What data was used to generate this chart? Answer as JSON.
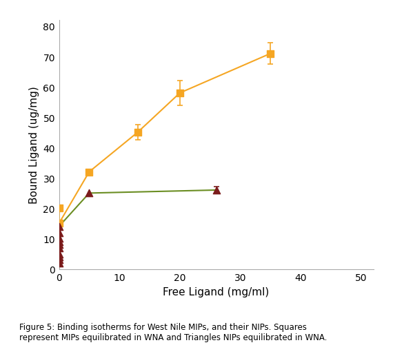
{
  "mip_x": [
    0,
    0,
    5,
    13,
    20,
    35
  ],
  "mip_y": [
    20,
    15,
    32,
    45,
    58,
    71
  ],
  "mip_yerr": [
    0,
    0,
    0,
    2.5,
    4,
    3.5
  ],
  "mip_color": "#F5A623",
  "mip_line_color": "#F5A623",
  "nip_x": [
    0,
    0,
    0,
    0,
    0,
    0,
    0,
    0,
    0,
    0,
    5,
    26
  ],
  "nip_y": [
    14,
    12,
    10,
    9,
    8,
    7,
    5,
    4,
    3,
    2,
    25,
    26
  ],
  "nip_yerr_last": 1.2,
  "nip_color": "#7B1C1C",
  "nip_line_color": "#6B8E23",
  "nip_line_x": [
    0,
    5,
    26
  ],
  "nip_line_y": [
    14,
    25,
    26
  ],
  "xlabel": "Free Ligand (mg/ml)",
  "ylabel": "Bound Ligand (ug/mg)",
  "xlim": [
    0,
    52
  ],
  "ylim": [
    0,
    82
  ],
  "xticks": [
    0,
    10,
    20,
    30,
    40,
    50
  ],
  "yticks": [
    0,
    10,
    20,
    30,
    40,
    50,
    60,
    70,
    80
  ],
  "figure_text": "Figure 5: Binding isotherms for West Nile MIPs, and their NIPs. Squares\nrepresent MIPs equilibrated in WNA and Triangles NIPs equilibrated in WNA.",
  "bg_color": "#FFFFFF"
}
